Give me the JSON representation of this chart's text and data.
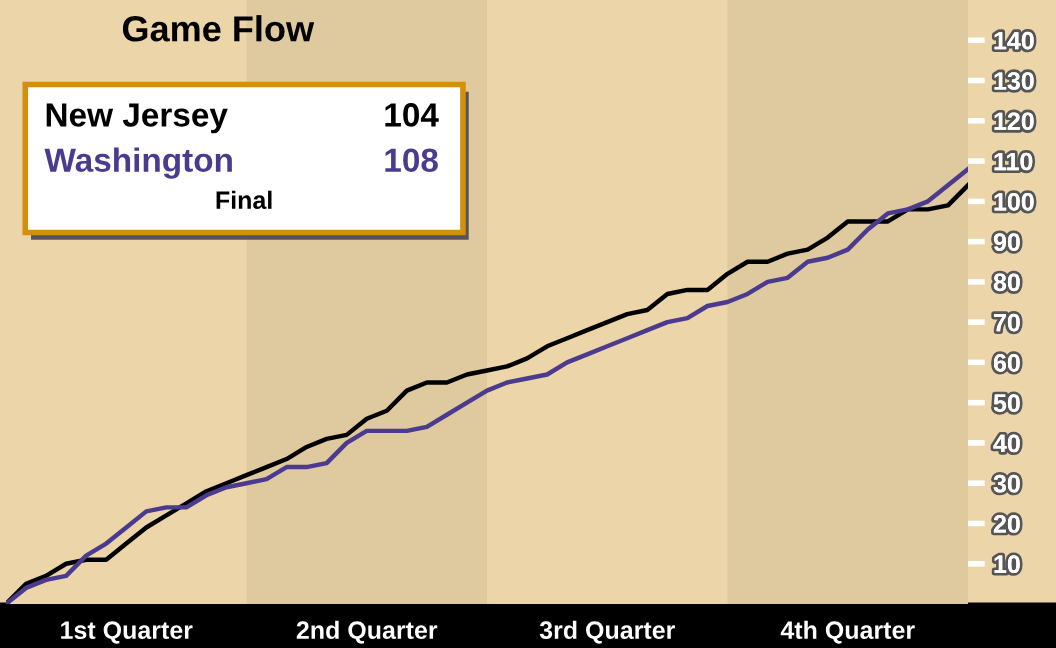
{
  "chart_data": {
    "type": "line",
    "title": "Game Flow",
    "categories": [
      null,
      null,
      null,
      null,
      null,
      null,
      "1st Quarter",
      null,
      null,
      null,
      null,
      null,
      null,
      null,
      null,
      null,
      null,
      null,
      "2nd Quarter",
      null,
      null,
      null,
      null,
      null,
      null,
      null,
      null,
      null,
      null,
      null,
      "3rd Quarter",
      null,
      null,
      null,
      null,
      null,
      null,
      null,
      null,
      null,
      null,
      null,
      "4th Quarter",
      null,
      null,
      null,
      null,
      null,
      null
    ],
    "ylim": [
      0,
      150
    ],
    "yticks": [
      10,
      20,
      30,
      40,
      50,
      60,
      70,
      80,
      90,
      100,
      110,
      120,
      130,
      140
    ],
    "legend": "top left",
    "annotations": [
      "104",
      "108",
      "Final"
    ],
    "series": [
      {
        "name": "New Jersey",
        "color": "#000000",
        "values": [
          0,
          5,
          7,
          10,
          11,
          11,
          15,
          19,
          22,
          25,
          28,
          30,
          32,
          34,
          36,
          39,
          41,
          42,
          46,
          48,
          53,
          55,
          55,
          57,
          58,
          59,
          61,
          64,
          66,
          68,
          70,
          72,
          73,
          77,
          78,
          78,
          82,
          85,
          85,
          87,
          88,
          91,
          95,
          95,
          95,
          98,
          98,
          99,
          104
        ]
      },
      {
        "name": "Washington",
        "color": "#4b3b8f",
        "values": [
          0,
          4,
          6,
          7,
          12,
          15,
          19,
          23,
          24,
          24,
          27,
          29,
          30,
          31,
          34,
          34,
          35,
          40,
          43,
          43,
          43,
          44,
          47,
          50,
          53,
          55,
          56,
          57,
          60,
          62,
          64,
          66,
          68,
          70,
          71,
          74,
          75,
          77,
          80,
          81,
          85,
          86,
          88,
          93,
          97,
          98,
          100,
          104,
          108
        ]
      }
    ]
  }
}
